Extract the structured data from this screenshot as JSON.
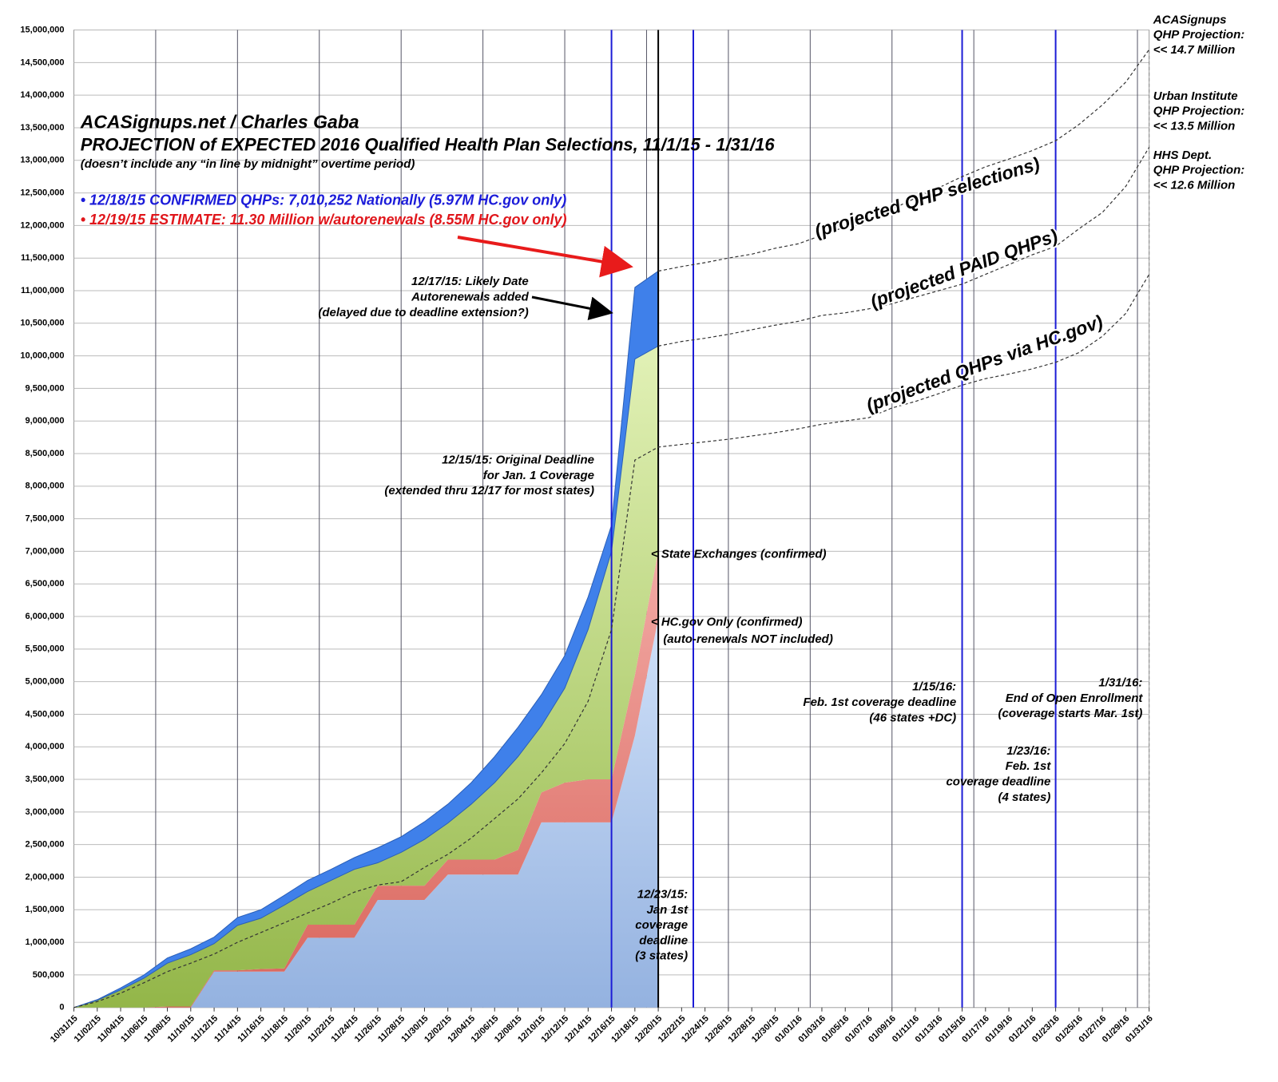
{
  "chart_data": {
    "type": "area",
    "stacked": true,
    "grid": true,
    "title": [
      "ACASignups.net / Charles Gaba",
      "PROJECTION of EXPECTED 2016 Qualified Health Plan Selections, 11/1/15 - 1/31/16"
    ],
    "subtitle": "(doesn’t include any “in line by midnight” overtime period)",
    "highlights": [
      {
        "text": "• 12/18/15 CONFIRMED QHPs: 7,010,252 Nationally (5.97M HC.gov only)",
        "color": "#1b1bd9"
      },
      {
        "text": "• 12/19/15 ESTIMATE: 11.30 Million w/autorenewals (8.55M HC.gov only)",
        "color": "#e0161b"
      }
    ],
    "x": [
      "10/31/15",
      "11/02/15",
      "11/04/15",
      "11/06/15",
      "11/08/15",
      "11/10/15",
      "11/12/15",
      "11/14/15",
      "11/16/15",
      "11/18/15",
      "11/20/15",
      "11/22/15",
      "11/24/15",
      "11/26/15",
      "11/28/15",
      "11/30/15",
      "12/02/15",
      "12/04/15",
      "12/06/15",
      "12/08/15",
      "12/10/15",
      "12/12/15",
      "12/14/15",
      "12/16/15",
      "12/18/15",
      "12/20/15",
      "12/22/15",
      "12/24/15",
      "12/26/15",
      "12/28/15",
      "12/30/15",
      "01/01/16",
      "01/03/16",
      "01/05/16",
      "01/07/16",
      "01/09/16",
      "01/11/16",
      "01/13/16",
      "01/15/16",
      "01/17/16",
      "01/19/16",
      "01/21/16",
      "01/23/16",
      "01/25/16",
      "01/27/16",
      "01/29/16",
      "01/31/16"
    ],
    "series": [
      {
        "name": "< HC.gov Only (confirmed)",
        "color": "#a6c1ea",
        "values": [
          0,
          0,
          0,
          0,
          0,
          0,
          550000,
          550000,
          550000,
          550000,
          1070000,
          1070000,
          1070000,
          1650000,
          1650000,
          1650000,
          2040000,
          2040000,
          2040000,
          2040000,
          2840000,
          2840000,
          2840000,
          2840000,
          4170000,
          5970000,
          null,
          null,
          null,
          null,
          null,
          null,
          null,
          null,
          null,
          null,
          null,
          null,
          null,
          null,
          null,
          null,
          null,
          null,
          null,
          null,
          null
        ]
      },
      {
        "name": "< State Exchanges (confirmed)",
        "color": "#e07870",
        "values": [
          0,
          0,
          0,
          0,
          15000,
          15000,
          20000,
          20000,
          40000,
          50000,
          200000,
          200000,
          200000,
          220000,
          220000,
          220000,
          230000,
          230000,
          230000,
          380000,
          460000,
          610000,
          660000,
          660000,
          930000,
          1030000,
          null,
          null,
          null,
          null,
          null,
          null,
          null,
          null,
          null,
          null,
          null,
          null,
          null,
          null,
          null,
          null,
          null,
          null,
          null,
          null,
          null
        ]
      },
      {
        "color": "#a8c668",
        "values": [
          0,
          110000,
          270000,
          450000,
          665000,
          795000,
          410000,
          690000,
          780000,
          970000,
          510000,
          680000,
          850000,
          350000,
          510000,
          710000,
          560000,
          850000,
          1180000,
          1430000,
          1020000,
          1450000,
          2300000,
          3500000,
          4850000,
          3150000,
          null,
          null,
          null,
          null,
          null,
          null,
          null,
          null,
          null,
          null,
          null,
          null,
          null,
          null,
          null,
          null,
          null,
          null,
          null,
          null,
          null
        ]
      },
      {
        "color": "#3f80ea",
        "values": [
          0,
          10000,
          30000,
          50000,
          80000,
          90000,
          100000,
          120000,
          130000,
          150000,
          170000,
          170000,
          180000,
          230000,
          240000,
          270000,
          290000,
          330000,
          400000,
          450000,
          480000,
          500000,
          500000,
          400000,
          1100000,
          1150000,
          null,
          null,
          null,
          null,
          null,
          null,
          null,
          null,
          null,
          null,
          null,
          null,
          null,
          null,
          null,
          null,
          null,
          null,
          null,
          null,
          null
        ]
      }
    ],
    "lines": [
      {
        "name": "(projected QHP selections)",
        "color": "#333333",
        "values": [
          null,
          null,
          null,
          null,
          null,
          null,
          null,
          null,
          null,
          null,
          null,
          null,
          null,
          null,
          null,
          null,
          null,
          null,
          null,
          null,
          null,
          null,
          null,
          null,
          null,
          11300000,
          11370000,
          11430000,
          11500000,
          11560000,
          11650000,
          11720000,
          11850000,
          11980000,
          12100000,
          12250000,
          12420000,
          12580000,
          12750000,
          12900000,
          13020000,
          13150000,
          13300000,
          13550000,
          13850000,
          14200000,
          14700000
        ]
      },
      {
        "name": "(projected PAID QHPs)",
        "color": "#333333",
        "values": [
          null,
          null,
          null,
          null,
          null,
          null,
          null,
          null,
          null,
          null,
          null,
          null,
          null,
          null,
          null,
          null,
          null,
          null,
          null,
          null,
          null,
          null,
          null,
          null,
          null,
          10150000,
          10220000,
          10270000,
          10330000,
          10400000,
          10470000,
          10530000,
          10620000,
          10660000,
          10720000,
          10800000,
          10900000,
          11000000,
          11100000,
          11250000,
          11400000,
          11550000,
          11680000,
          11950000,
          12200000,
          12600000,
          13200000
        ]
      },
      {
        "name": "(projected QHPs via HC.gov)",
        "color": "#333333",
        "values": [
          0,
          90000,
          220000,
          380000,
          550000,
          680000,
          820000,
          1000000,
          1150000,
          1300000,
          1450000,
          1600000,
          1770000,
          1880000,
          1930000,
          2150000,
          2350000,
          2600000,
          2900000,
          3200000,
          3600000,
          4050000,
          4700000,
          5800000,
          8400000,
          8600000,
          8640000,
          8680000,
          8720000,
          8770000,
          8820000,
          8880000,
          8950000,
          9000000,
          9050000,
          9200000,
          9300000,
          9420000,
          9550000,
          9650000,
          9720000,
          9800000,
          9900000,
          10050000,
          10300000,
          10650000,
          11250000
        ]
      }
    ],
    "ylim": [
      0,
      15000000
    ],
    "yticks": [
      {
        "value": 0,
        "label": "0"
      },
      {
        "value": 500000,
        "label": "500,000"
      },
      {
        "value": 1000000,
        "label": "1,000,000"
      },
      {
        "value": 1500000,
        "label": "1,500,000"
      },
      {
        "value": 2000000,
        "label": "2,000,000"
      },
      {
        "value": 2500000,
        "label": "2,500,000"
      },
      {
        "value": 3000000,
        "label": "3,000,000"
      },
      {
        "value": 3500000,
        "label": "3,500,000"
      },
      {
        "value": 4000000,
        "label": "4,000,000"
      },
      {
        "value": 4500000,
        "label": "4,500,000"
      },
      {
        "value": 5000000,
        "label": "5,000,000"
      },
      {
        "value": 5500000,
        "label": "5,500,000"
      },
      {
        "value": 6000000,
        "label": "6,000,000"
      },
      {
        "value": 6500000,
        "label": "6,500,000"
      },
      {
        "value": 7000000,
        "label": "7,000,000"
      },
      {
        "value": 7500000,
        "label": "7,500,000"
      },
      {
        "value": 8000000,
        "label": "8,000,000"
      },
      {
        "value": 8500000,
        "label": "8,500,000"
      },
      {
        "value": 9000000,
        "label": "9,000,000"
      },
      {
        "value": 9500000,
        "label": "9,500,000"
      },
      {
        "value": 10000000,
        "label": "10,000,000"
      },
      {
        "value": 10500000,
        "label": "10,500,000"
      },
      {
        "value": 11000000,
        "label": "11,000,000"
      },
      {
        "value": 11500000,
        "label": "11,500,000"
      },
      {
        "value": 12000000,
        "label": "12,000,000"
      },
      {
        "value": 12500000,
        "label": "12,500,000"
      },
      {
        "value": 13000000,
        "label": "13,000,000"
      },
      {
        "value": 13500000,
        "label": "13,500,000"
      },
      {
        "value": 14000000,
        "label": "14,000,000"
      },
      {
        "value": 14500000,
        "label": "14,500,000"
      },
      {
        "value": 15000000,
        "label": "15,000,000"
      }
    ],
    "annotations": [
      {
        "lines": [
          "12/17/15: Likely Date",
          "Autorenewals added",
          "(delayed due to deadline extension?)"
        ]
      },
      {
        "lines": [
          "12/15/15: Original Deadline",
          "for Jan. 1 Coverage",
          "(extended thru 12/17 for most states)"
        ]
      },
      {
        "lines": [
          "(auto-renewals NOT included)"
        ]
      },
      {
        "lines": [
          "12/23/15:",
          "Jan 1st",
          "coverage",
          "deadline",
          "(3 states)"
        ]
      },
      {
        "lines": [
          "1/15/16:",
          "Feb. 1st coverage deadline",
          "(46 states +DC)"
        ]
      },
      {
        "lines": [
          "1/31/16:",
          "End of Open Enrollment",
          "(coverage starts Mar. 1st)"
        ]
      },
      {
        "lines": [
          "1/23/16:",
          "Feb. 1st",
          "coverage deadline",
          "(4 states)"
        ]
      },
      {
        "lines": [
          "ACASignups",
          "QHP Projection:",
          "<< 14.7 Million"
        ]
      },
      {
        "lines": [
          "Urban Institute",
          "QHP Projection:",
          "<< 13.5 Million"
        ]
      },
      {
        "lines": [
          "HHS Dept.",
          "QHP Projection:",
          "<< 12.6 Million"
        ]
      }
    ]
  }
}
